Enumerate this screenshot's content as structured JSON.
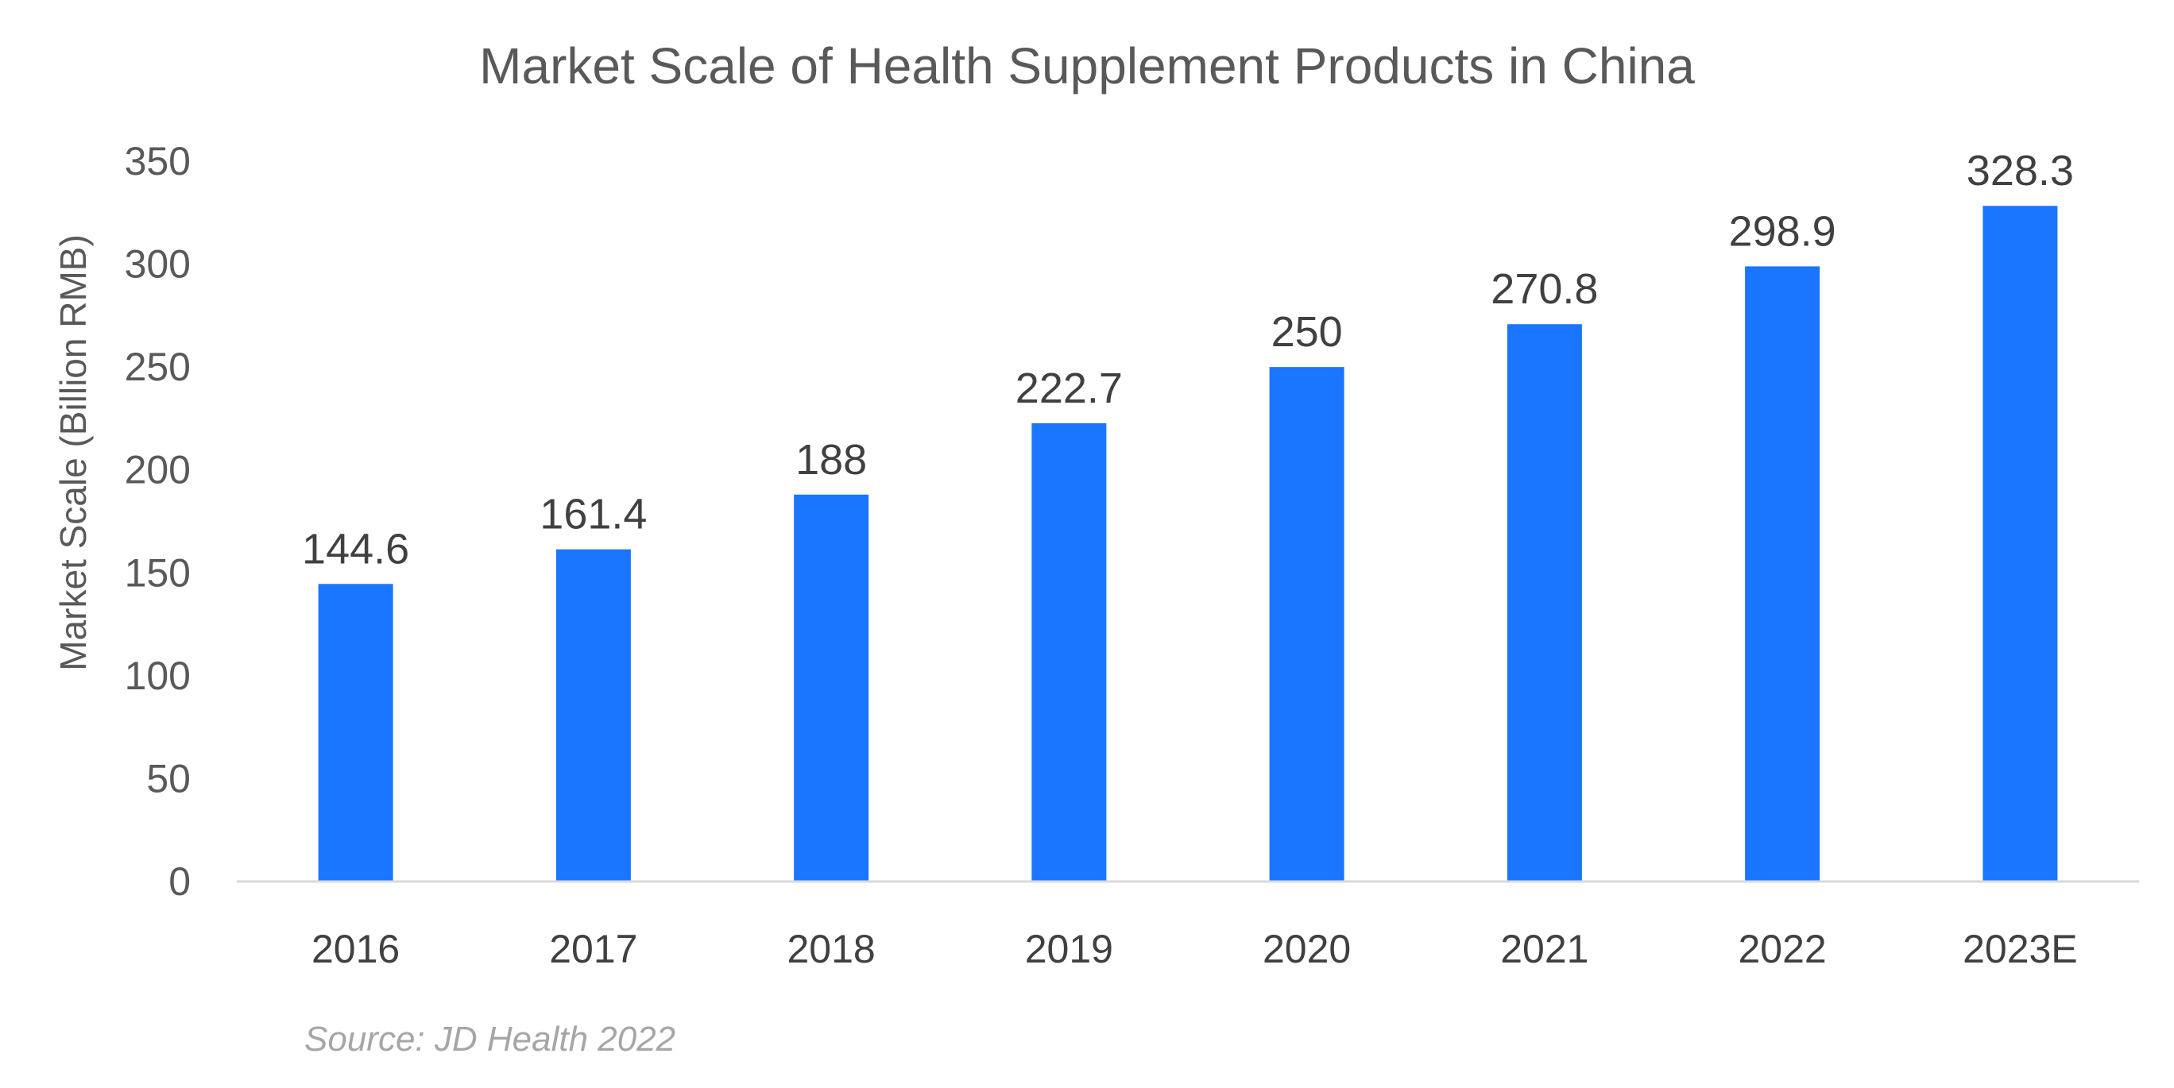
{
  "chart_data": {
    "type": "bar",
    "title": "Market Scale of Health Supplement Products in China",
    "xlabel": "",
    "ylabel": "Market Scale (Billion RMB)",
    "categories": [
      "2016",
      "2017",
      "2018",
      "2019",
      "2020",
      "2021",
      "2022",
      "2023E"
    ],
    "values": [
      144.6,
      161.4,
      188,
      222.7,
      250,
      270.8,
      298.9,
      328.3
    ],
    "data_labels": [
      "144.6",
      "161.4",
      "188",
      "222.7",
      "250",
      "270.8",
      "298.9",
      "328.3"
    ],
    "ylim": [
      0,
      350
    ],
    "yticks": [
      "0",
      "50",
      "100",
      "150",
      "200",
      "250",
      "300",
      "350"
    ],
    "grid": false,
    "legend": "none",
    "bar_color": "#1a75ff",
    "source": "Source: JD Health 2022"
  }
}
